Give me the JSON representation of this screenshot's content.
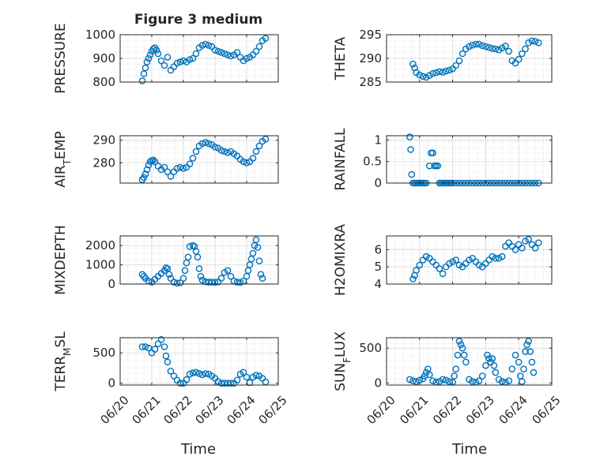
{
  "figure": {
    "title": "Figure 3 medium",
    "xlabel": "Time",
    "marker_color": "#0072BD",
    "xticks": [
      "06/20",
      "06/21",
      "06/22",
      "06/23",
      "06/24",
      "06/25"
    ]
  },
  "chart_data": [
    {
      "type": "scatter",
      "ylabel": "PRESSURE",
      "xlim": [
        0,
        5
      ],
      "ylim": [
        800,
        1000
      ],
      "yticks": [
        800,
        900,
        1000
      ],
      "grid": true,
      "x": [
        0.7,
        0.75,
        0.8,
        0.85,
        0.9,
        0.95,
        1.0,
        1.05,
        1.1,
        1.15,
        1.2,
        1.3,
        1.4,
        1.5,
        1.6,
        1.7,
        1.8,
        1.9,
        2.0,
        2.1,
        2.2,
        2.3,
        2.4,
        2.5,
        2.6,
        2.7,
        2.8,
        2.9,
        3.0,
        3.1,
        3.2,
        3.3,
        3.4,
        3.5,
        3.6,
        3.7,
        3.8,
        3.9,
        4.0,
        4.1,
        4.2,
        4.3,
        4.4,
        4.5,
        4.6
      ],
      "y": [
        805,
        835,
        860,
        885,
        900,
        915,
        930,
        940,
        945,
        935,
        920,
        890,
        870,
        905,
        850,
        865,
        880,
        885,
        890,
        885,
        895,
        900,
        920,
        945,
        955,
        960,
        955,
        950,
        935,
        930,
        925,
        920,
        915,
        910,
        915,
        925,
        905,
        890,
        900,
        905,
        915,
        930,
        950,
        975,
        985
      ]
    },
    {
      "type": "scatter",
      "ylabel": "THETA",
      "xlim": [
        0,
        5
      ],
      "ylim": [
        285,
        295
      ],
      "yticks": [
        285,
        290,
        295
      ],
      "grid": true,
      "x": [
        0.8,
        0.85,
        0.9,
        1.0,
        1.1,
        1.2,
        1.3,
        1.4,
        1.5,
        1.6,
        1.7,
        1.8,
        1.9,
        2.0,
        2.1,
        2.2,
        2.3,
        2.4,
        2.5,
        2.6,
        2.7,
        2.8,
        2.9,
        3.0,
        3.1,
        3.2,
        3.3,
        3.4,
        3.5,
        3.6,
        3.7,
        3.8,
        3.9,
        4.0,
        4.1,
        4.2,
        4.3,
        4.4,
        4.5,
        4.6
      ],
      "y": [
        288.8,
        288.0,
        287.0,
        286.5,
        286.2,
        286.0,
        286.4,
        286.8,
        287.0,
        287.2,
        287.1,
        287.3,
        287.5,
        287.8,
        288.5,
        289.5,
        291.0,
        292.0,
        292.5,
        292.8,
        293.0,
        293.0,
        292.7,
        292.5,
        292.3,
        292.1,
        292.0,
        291.8,
        292.2,
        292.6,
        291.5,
        289.5,
        289.0,
        289.8,
        291.0,
        292.0,
        293.3,
        293.7,
        293.6,
        293.3
      ]
    },
    {
      "type": "scatter",
      "ylabel": "AIR_TEMP",
      "xlim": [
        0,
        5
      ],
      "ylim": [
        271,
        292
      ],
      "yticks": [
        280,
        290
      ],
      "grid": true,
      "x": [
        0.7,
        0.75,
        0.8,
        0.85,
        0.9,
        0.95,
        1.0,
        1.05,
        1.1,
        1.2,
        1.3,
        1.4,
        1.5,
        1.6,
        1.7,
        1.8,
        1.9,
        2.0,
        2.1,
        2.2,
        2.3,
        2.4,
        2.5,
        2.6,
        2.7,
        2.8,
        2.9,
        3.0,
        3.1,
        3.2,
        3.3,
        3.4,
        3.5,
        3.6,
        3.7,
        3.8,
        3.9,
        4.0,
        4.1,
        4.2,
        4.3,
        4.4,
        4.5,
        4.6
      ],
      "y": [
        272.5,
        273.5,
        275,
        277,
        279,
        280.5,
        281,
        281.2,
        280.5,
        278.5,
        277,
        278,
        276,
        274,
        276,
        277.5,
        278,
        277.5,
        278,
        279.5,
        282,
        285,
        287.5,
        288.5,
        289,
        288.5,
        288,
        287,
        286.5,
        285.5,
        285,
        284.5,
        285,
        284,
        283,
        281.5,
        280.5,
        280,
        280.5,
        282,
        285,
        287.5,
        289.5,
        290.5
      ]
    },
    {
      "type": "scatter",
      "ylabel": "RAINFALL",
      "xlim": [
        0,
        5
      ],
      "ylim": [
        0,
        1.1
      ],
      "yticks": [
        0,
        0.5,
        1
      ],
      "grid": true,
      "x": [
        0.7,
        0.73,
        0.76,
        0.8,
        0.85,
        0.9,
        0.95,
        1.0,
        1.05,
        1.1,
        1.15,
        1.2,
        1.3,
        1.35,
        1.4,
        1.45,
        1.5,
        1.55,
        1.6,
        1.65,
        1.7,
        1.75,
        1.8,
        1.85,
        1.9,
        1.95,
        2.0,
        2.1,
        2.2,
        2.3,
        2.4,
        2.5,
        2.6,
        2.7,
        2.8,
        2.9,
        3.0,
        3.1,
        3.2,
        3.3,
        3.4,
        3.5,
        3.6,
        3.7,
        3.8,
        3.9,
        4.0,
        4.1,
        4.2,
        4.3,
        4.4,
        4.5,
        4.6
      ],
      "y": [
        1.07,
        0.78,
        0.2,
        0,
        0,
        0,
        0,
        0,
        0,
        0,
        0,
        0,
        0.4,
        0.7,
        0.7,
        0.4,
        0.4,
        0.4,
        0,
        0,
        0,
        0,
        0,
        0,
        0,
        0,
        0,
        0,
        0,
        0,
        0,
        0,
        0,
        0,
        0,
        0,
        0,
        0,
        0,
        0,
        0,
        0,
        0,
        0,
        0,
        0,
        0,
        0,
        0,
        0,
        0,
        0,
        0
      ]
    },
    {
      "type": "scatter",
      "ylabel": "MIXDEPTH",
      "xlim": [
        0,
        5
      ],
      "ylim": [
        0,
        2500
      ],
      "yticks": [
        0,
        1000,
        2000
      ],
      "grid": true,
      "x": [
        0.7,
        0.75,
        0.8,
        0.9,
        1.0,
        1.1,
        1.2,
        1.3,
        1.4,
        1.45,
        1.5,
        1.55,
        1.6,
        1.7,
        1.8,
        1.9,
        2.0,
        2.05,
        2.1,
        2.15,
        2.2,
        2.3,
        2.35,
        2.4,
        2.45,
        2.5,
        2.55,
        2.6,
        2.7,
        2.8,
        2.9,
        3.0,
        3.1,
        3.2,
        3.3,
        3.4,
        3.5,
        3.6,
        3.7,
        3.8,
        3.9,
        4.0,
        4.05,
        4.1,
        4.15,
        4.2,
        4.25,
        4.3,
        4.35,
        4.4,
        4.45,
        4.5
      ],
      "y": [
        500,
        400,
        300,
        150,
        100,
        250,
        400,
        550,
        700,
        850,
        800,
        500,
        300,
        100,
        50,
        60,
        300,
        700,
        1100,
        1400,
        1950,
        2000,
        1950,
        1700,
        1400,
        800,
        400,
        200,
        120,
        100,
        100,
        90,
        110,
        300,
        600,
        700,
        400,
        150,
        100,
        80,
        150,
        400,
        700,
        1000,
        1300,
        1600,
        2000,
        2300,
        1900,
        1200,
        500,
        300
      ]
    },
    {
      "type": "scatter",
      "ylabel": "H2OMIXRA",
      "xlim": [
        0,
        5
      ],
      "ylim": [
        4,
        6.8
      ],
      "yticks": [
        4,
        5,
        6
      ],
      "grid": true,
      "x": [
        0.8,
        0.85,
        0.9,
        1.0,
        1.1,
        1.2,
        1.3,
        1.4,
        1.5,
        1.6,
        1.7,
        1.8,
        1.9,
        2.0,
        2.1,
        2.2,
        2.3,
        2.4,
        2.5,
        2.6,
        2.7,
        2.8,
        2.9,
        3.0,
        3.1,
        3.2,
        3.3,
        3.4,
        3.5,
        3.6,
        3.7,
        3.8,
        3.9,
        4.0,
        4.1,
        4.2,
        4.3,
        4.4,
        4.5,
        4.6
      ],
      "y": [
        4.3,
        4.5,
        4.8,
        5.1,
        5.4,
        5.6,
        5.5,
        5.3,
        5.1,
        4.9,
        4.6,
        5.0,
        5.2,
        5.3,
        5.4,
        5.1,
        5.0,
        5.2,
        5.4,
        5.5,
        5.3,
        5.1,
        5.0,
        5.2,
        5.4,
        5.6,
        5.5,
        5.5,
        5.6,
        6.2,
        6.4,
        6.2,
        6.0,
        6.3,
        6.1,
        6.5,
        6.6,
        6.3,
        6.1,
        6.4
      ]
    },
    {
      "type": "scatter",
      "ylabel": "TERR_MSL",
      "xlim": [
        0,
        5
      ],
      "ylim": [
        -30,
        750
      ],
      "yticks": [
        0,
        500
      ],
      "grid": true,
      "x": [
        0.7,
        0.8,
        0.9,
        1.0,
        1.1,
        1.2,
        1.3,
        1.4,
        1.45,
        1.5,
        1.6,
        1.7,
        1.8,
        1.9,
        2.0,
        2.1,
        2.2,
        2.3,
        2.4,
        2.5,
        2.6,
        2.7,
        2.8,
        2.9,
        3.0,
        3.1,
        3.2,
        3.3,
        3.4,
        3.5,
        3.6,
        3.7,
        3.8,
        3.9,
        4.0,
        4.1,
        4.2,
        4.3,
        4.4,
        4.5,
        4.6
      ],
      "y": [
        600,
        600,
        580,
        500,
        560,
        650,
        720,
        600,
        450,
        350,
        200,
        120,
        50,
        0,
        0,
        60,
        150,
        170,
        180,
        160,
        140,
        160,
        150,
        120,
        80,
        30,
        0,
        0,
        0,
        0,
        0,
        50,
        150,
        180,
        100,
        10,
        100,
        130,
        120,
        80,
        20
      ]
    },
    {
      "type": "scatter",
      "ylabel": "SUN_FLUX",
      "xlim": [
        0,
        5
      ],
      "ylim": [
        -30,
        650
      ],
      "yticks": [
        0,
        500
      ],
      "grid": true,
      "x": [
        0.7,
        0.8,
        0.9,
        1.0,
        1.1,
        1.15,
        1.2,
        1.25,
        1.3,
        1.4,
        1.5,
        1.6,
        1.7,
        1.8,
        1.9,
        2.0,
        2.05,
        2.1,
        2.15,
        2.2,
        2.25,
        2.3,
        2.35,
        2.4,
        2.5,
        2.6,
        2.7,
        2.8,
        2.9,
        3.0,
        3.05,
        3.1,
        3.15,
        3.2,
        3.25,
        3.3,
        3.4,
        3.5,
        3.6,
        3.7,
        3.8,
        3.9,
        4.0,
        4.05,
        4.1,
        4.15,
        4.2,
        4.25,
        4.3,
        4.35,
        4.4,
        4.45
      ],
      "y": [
        50,
        30,
        20,
        40,
        60,
        100,
        150,
        200,
        120,
        30,
        10,
        20,
        50,
        40,
        20,
        10,
        100,
        200,
        400,
        600,
        550,
        500,
        400,
        300,
        50,
        20,
        10,
        30,
        100,
        250,
        400,
        350,
        300,
        350,
        250,
        150,
        50,
        20,
        10,
        30,
        200,
        400,
        300,
        100,
        20,
        200,
        450,
        550,
        600,
        450,
        300,
        150
      ]
    }
  ]
}
